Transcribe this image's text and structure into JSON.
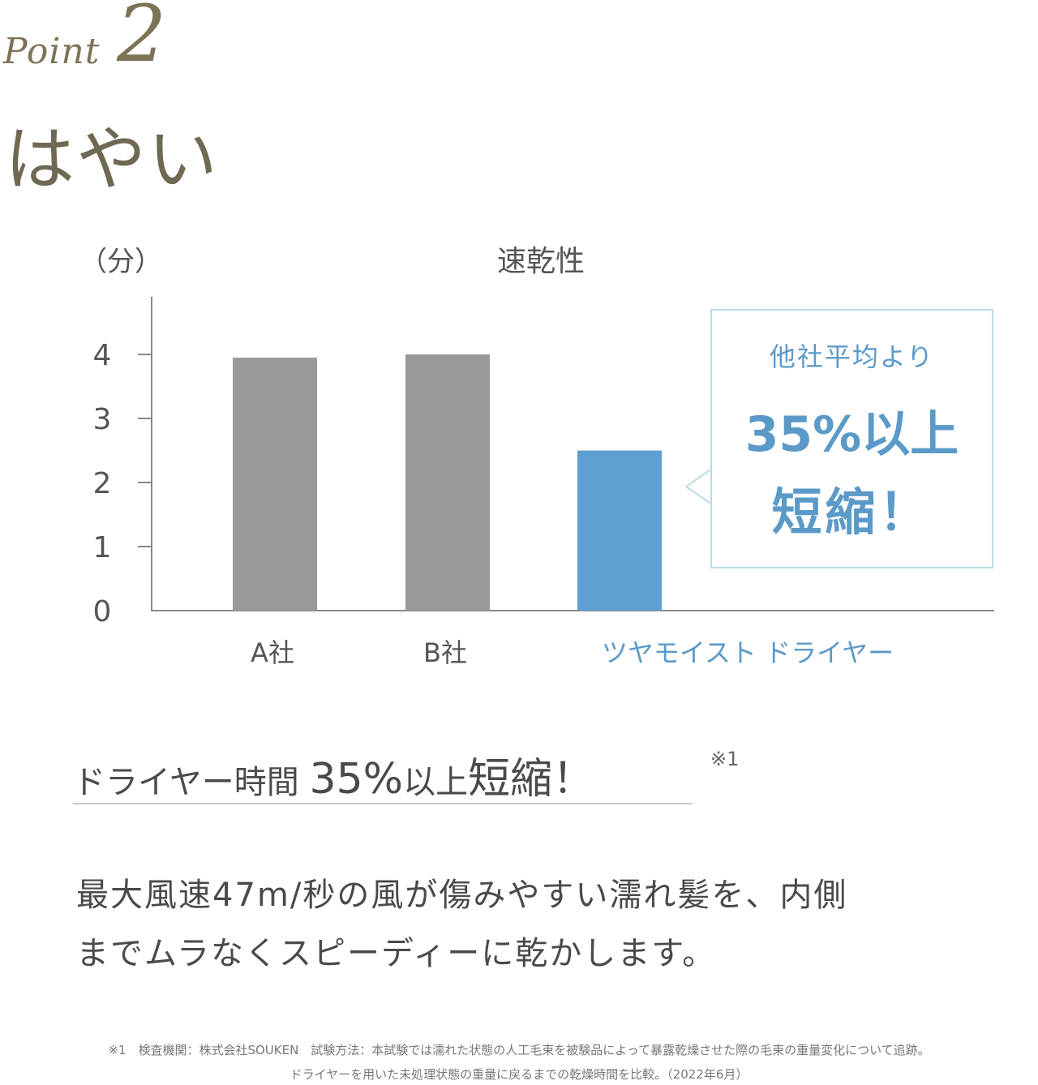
{
  "header": {
    "point_label": "Point",
    "point_number": "2",
    "title": "はやい"
  },
  "chart_data": {
    "type": "bar",
    "title": "速乾性",
    "ylabel": "（分）",
    "xlabel": "",
    "categories": [
      "A社",
      "B社",
      "ツヤモイスト ドライヤー"
    ],
    "values": [
      3.95,
      4.0,
      2.5
    ],
    "bar_colors": [
      "#999999",
      "#999999",
      "#5e9fd1"
    ],
    "category_label_colors": [
      "#555555",
      "#555555",
      "#5b9ac8"
    ],
    "ylim": [
      0,
      4.9
    ],
    "yticks": [
      "0",
      "1",
      "2",
      "3",
      "4"
    ],
    "grid": false,
    "legend": "none"
  },
  "callout": {
    "line1": "他社平均より",
    "line2": "35%以上",
    "line3": "短縮！"
  },
  "headline": {
    "part1": "ドライヤー時間 ",
    "part2": "35%",
    "part3": "以上",
    "part4": "短縮！",
    "note": "※1"
  },
  "body": {
    "line1": "最大風速47m/秒の風が傷みやすい濡れ髪を、内側",
    "line2": "までムラなくスピーディーに乾かします。"
  },
  "footnote": {
    "line1": "※1　検査機関：株式会社SOUKEN　試験方法：本試験では濡れた状態の人工毛束を被験品によって暴露乾燥させた際の毛束の重量変化について追跡。",
    "line2": "ドライヤーを用いた未処理状態の重量に戻るまでの乾燥時間を比較。（2022年6月）"
  },
  "colors": {
    "accent_blue": "#5b9ac8",
    "heading_olive": "#6f6853",
    "bar_gray": "#999999",
    "callout_border": "#b9dbe8"
  }
}
